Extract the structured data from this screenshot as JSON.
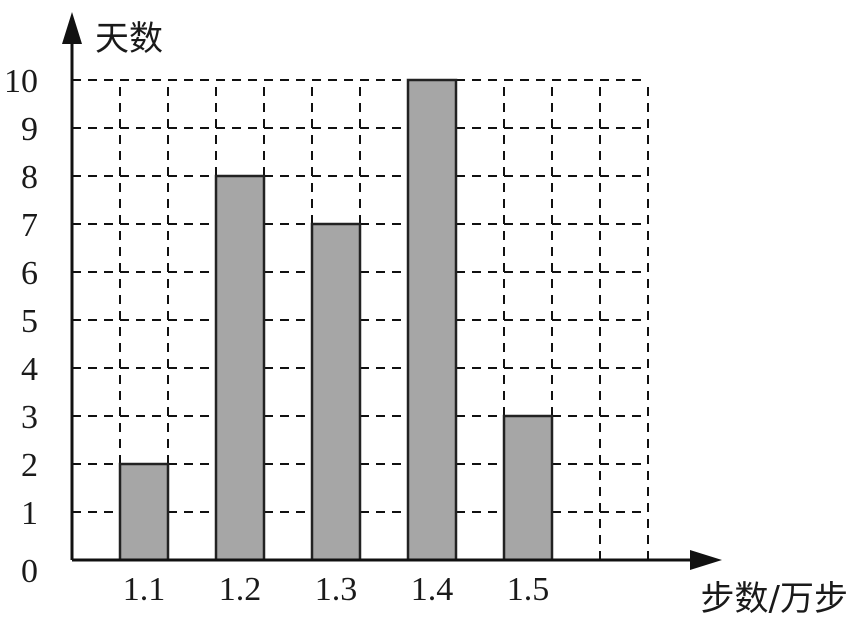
{
  "chart_data": {
    "type": "bar",
    "ylabel": "天数",
    "xlabel": "步数/万步",
    "categories": [
      "1.1",
      "1.2",
      "1.3",
      "1.4",
      "1.5"
    ],
    "values": [
      2,
      8,
      7,
      10,
      3
    ],
    "y_ticks": [
      "0",
      "1",
      "2",
      "3",
      "4",
      "5",
      "6",
      "7",
      "8",
      "9",
      "10"
    ],
    "ylim": [
      0,
      10
    ],
    "grid": true,
    "grid_style": "dashed",
    "bar_color": "#a6a6a6"
  }
}
